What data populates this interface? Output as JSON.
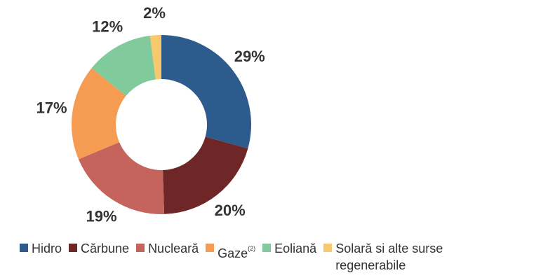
{
  "chart_data": {
    "type": "donut",
    "categories": [
      "Hidro",
      "Cărbune",
      "Nucleară",
      "Gaze",
      "Eoliană",
      "Solară si alte surse regenerabile"
    ],
    "values": [
      29,
      20,
      19,
      17,
      12,
      2
    ],
    "value_labels": [
      "29%",
      "20%",
      "19%",
      "17%",
      "12%",
      "2%"
    ],
    "colors": [
      "#2e5b8e",
      "#6e2626",
      "#c4645c",
      "#f59b52",
      "#80ca9b",
      "#f6c96c"
    ],
    "footnotes": [
      null,
      null,
      null,
      "(2)",
      null,
      null
    ]
  }
}
